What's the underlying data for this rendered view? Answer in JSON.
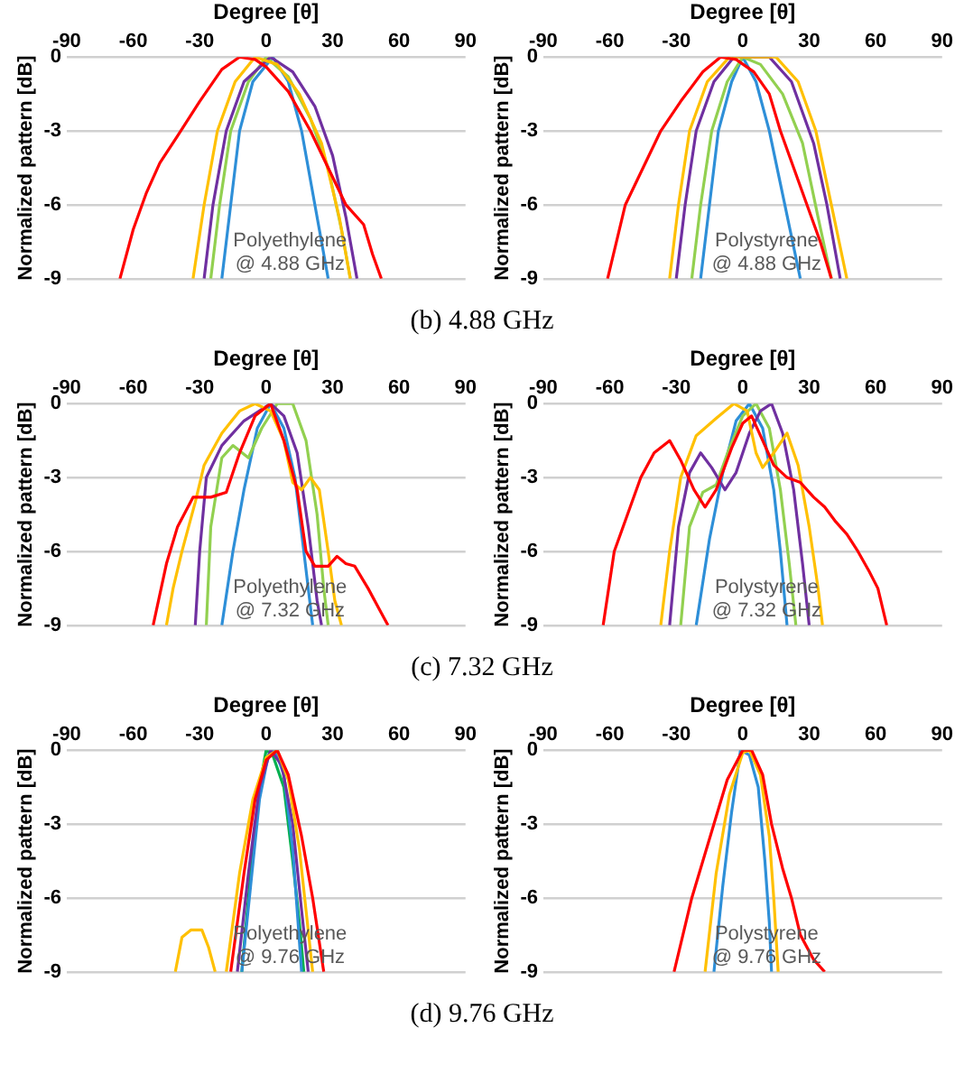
{
  "chart_data": [
    {
      "type": "line",
      "xlabel": "Degree [θ]",
      "ylabel": "Normalized pattern [dB]",
      "xlim": [
        -90,
        90
      ],
      "xticks": [
        -90,
        -60,
        -30,
        0,
        30,
        60,
        90
      ],
      "ylim": [
        -9,
        0
      ],
      "yticks": [
        -9,
        -6,
        -3,
        0
      ],
      "grid": "y",
      "annotations": [
        "Polyethylene\n@ 4.88 GHz",
        "(b) 4.88 GHz"
      ],
      "series": [
        {
          "color": "#ff0000",
          "x": [
            -66,
            -60,
            -54,
            -48,
            -40,
            -30,
            -20,
            -12,
            -5,
            0,
            10,
            20,
            28,
            36,
            44,
            48,
            52
          ],
          "values": [
            -9,
            -7,
            -5.5,
            -4.3,
            -3.2,
            -1.8,
            -0.5,
            0,
            -0.1,
            -0.4,
            -1.4,
            -3,
            -4.5,
            -6,
            -6.8,
            -8,
            -9
          ]
        },
        {
          "color": "#ffc000",
          "x": [
            -33,
            -28,
            -22,
            -14,
            -5,
            5,
            15,
            25,
            33,
            38
          ],
          "values": [
            -9,
            -6,
            -3,
            -1,
            0,
            -0.3,
            -1.5,
            -3.5,
            -6.5,
            -9
          ]
        },
        {
          "color": "#7030a0",
          "x": [
            -28,
            -24,
            -18,
            -10,
            2,
            12,
            22,
            30,
            36,
            41
          ],
          "values": [
            -9,
            -6,
            -3,
            -1,
            0,
            -0.6,
            -2,
            -4,
            -6.5,
            -9
          ]
        },
        {
          "color": "#92d050",
          "x": [
            -25,
            -21,
            -16,
            -8,
            0,
            10,
            20,
            28,
            34,
            38
          ],
          "values": [
            -9,
            -6,
            -3,
            -1,
            0,
            -0.8,
            -2.5,
            -4.5,
            -7,
            -9
          ]
        },
        {
          "color": "#2e8fd8",
          "x": [
            -20,
            -16,
            -12,
            -6,
            3,
            10,
            16,
            22,
            28
          ],
          "values": [
            -9,
            -6,
            -3,
            -1,
            0,
            -1,
            -3,
            -6,
            -9
          ]
        }
      ]
    },
    {
      "type": "line",
      "xlabel": "Degree [θ]",
      "ylabel": "Normalized pattern [dB]",
      "xlim": [
        -90,
        90
      ],
      "xticks": [
        -90,
        -60,
        -30,
        0,
        30,
        60,
        90
      ],
      "ylim": [
        -9,
        0
      ],
      "yticks": [
        -9,
        -6,
        -3,
        0
      ],
      "grid": "y",
      "annotations": [
        "Polystyrene\n@ 4.88 GHz"
      ],
      "series": [
        {
          "color": "#ff0000",
          "x": [
            -61,
            -53,
            -45,
            -37,
            -28,
            -18,
            -10,
            -3,
            5,
            12,
            17,
            23,
            29,
            35,
            40
          ],
          "values": [
            -9,
            -6,
            -4.5,
            -3,
            -1.8,
            -0.6,
            0,
            -0.1,
            -0.6,
            -1.5,
            -3,
            -4.5,
            -6,
            -7.5,
            -9
          ]
        },
        {
          "color": "#ffc000",
          "x": [
            -33,
            -29,
            -24,
            -16,
            -6,
            5,
            15,
            25,
            33,
            40,
            47
          ],
          "values": [
            -9,
            -6,
            -3,
            -1,
            0,
            0,
            0,
            -1,
            -3,
            -6,
            -9
          ]
        },
        {
          "color": "#7030a0",
          "x": [
            -30,
            -26,
            -21,
            -13,
            -4,
            4,
            12,
            22,
            32,
            38,
            44
          ],
          "values": [
            -9,
            -6,
            -3,
            -1,
            0,
            0,
            0,
            -1,
            -3.5,
            -6,
            -9
          ]
        },
        {
          "color": "#92d050",
          "x": [
            -23,
            -19,
            -14,
            -7,
            0,
            8,
            18,
            27,
            34,
            40
          ],
          "values": [
            -9,
            -6,
            -3,
            -1,
            0,
            -0.3,
            -1.5,
            -3.5,
            -6.5,
            -9
          ]
        },
        {
          "color": "#2e8fd8",
          "x": [
            -19,
            -15,
            -11,
            -5,
            0,
            6,
            12,
            19,
            26
          ],
          "values": [
            -9,
            -6,
            -3,
            -1,
            0,
            -1,
            -3,
            -6,
            -9
          ]
        }
      ]
    },
    {
      "type": "line",
      "xlabel": "Degree [θ]",
      "ylabel": "Normalized pattern [dB]",
      "xlim": [
        -90,
        90
      ],
      "xticks": [
        -90,
        -60,
        -30,
        0,
        30,
        60,
        90
      ],
      "ylim": [
        -9,
        0
      ],
      "yticks": [
        -9,
        -6,
        -3,
        0
      ],
      "grid": "y",
      "annotations": [
        "Polyethylene\n@ 7.32 GHz",
        "(c) 7.32 GHz"
      ],
      "series": [
        {
          "color": "#ff0000",
          "x": [
            -51,
            -45,
            -40,
            -33,
            -25,
            -18,
            -12,
            -5,
            2,
            8,
            14,
            18,
            22,
            28,
            32,
            36,
            40,
            46,
            52,
            55
          ],
          "values": [
            -9,
            -6.5,
            -5,
            -3.8,
            -3.8,
            -3.6,
            -2,
            -0.5,
            0,
            -1.5,
            -3.5,
            -6,
            -6.6,
            -6.6,
            -6.2,
            -6.5,
            -6.6,
            -7.5,
            -8.5,
            -9
          ]
        },
        {
          "color": "#ffc000",
          "x": [
            -45,
            -42,
            -38,
            -32,
            -28,
            -20,
            -12,
            -5,
            2,
            8,
            12,
            16,
            20,
            24,
            28,
            31,
            34
          ],
          "values": [
            -9,
            -7.5,
            -6,
            -4,
            -2.5,
            -1.2,
            -0.3,
            0,
            -0.3,
            -1.5,
            -3.2,
            -3.5,
            -3,
            -3.5,
            -6,
            -8,
            -9
          ]
        },
        {
          "color": "#7030a0",
          "x": [
            -32,
            -30,
            -27,
            -20,
            -10,
            2,
            8,
            14,
            19,
            23,
            25
          ],
          "values": [
            -9,
            -6,
            -3,
            -1.7,
            -0.7,
            0,
            -0.5,
            -2,
            -5,
            -8,
            -9
          ]
        },
        {
          "color": "#92d050",
          "x": [
            -27,
            -25,
            -20,
            -15,
            -8,
            -2,
            5,
            12,
            18,
            23,
            26,
            28
          ],
          "values": [
            -9,
            -5,
            -2.2,
            -1.7,
            -2.2,
            -1,
            0,
            0,
            -1.5,
            -4.5,
            -7.5,
            -9
          ]
        },
        {
          "color": "#2e8fd8",
          "x": [
            -20,
            -15,
            -10,
            -4,
            2,
            8,
            13,
            17,
            21
          ],
          "values": [
            -9,
            -6,
            -3.5,
            -1,
            0,
            -1,
            -3,
            -6,
            -9
          ]
        }
      ]
    },
    {
      "type": "line",
      "xlabel": "Degree [θ]",
      "ylabel": "Normalized pattern [dB]",
      "xlim": [
        -90,
        90
      ],
      "xticks": [
        -90,
        -60,
        -30,
        0,
        30,
        60,
        90
      ],
      "ylim": [
        -9,
        0
      ],
      "yticks": [
        -9,
        -6,
        -3,
        0
      ],
      "grid": "y",
      "annotations": [
        "Polystyrene\n@ 7.32 GHz"
      ],
      "series": [
        {
          "color": "#ff0000",
          "x": [
            -63,
            -58,
            -52,
            -46,
            -40,
            -33,
            -28,
            -22,
            -17,
            -12,
            -5,
            0,
            4,
            9,
            14,
            20,
            26,
            32,
            37,
            42,
            47,
            52,
            57,
            61,
            65
          ],
          "values": [
            -9,
            -6,
            -4.5,
            -3,
            -2,
            -1.5,
            -2.3,
            -3.5,
            -4.2,
            -3.5,
            -1.8,
            -0.8,
            -0.5,
            -1.5,
            -2.5,
            -3,
            -3.2,
            -3.8,
            -4.2,
            -4.8,
            -5.3,
            -6,
            -6.8,
            -7.5,
            -9
          ]
        },
        {
          "color": "#ffc000",
          "x": [
            -37,
            -33,
            -28,
            -21,
            -12,
            -4,
            2,
            6,
            9,
            14,
            20,
            25,
            30,
            34,
            36
          ],
          "values": [
            -9,
            -6,
            -3,
            -1.3,
            -0.6,
            0,
            -0.3,
            -2,
            -2.6,
            -2,
            -1.2,
            -2.5,
            -5,
            -7.5,
            -9
          ]
        },
        {
          "color": "#7030a0",
          "x": [
            -33,
            -29,
            -24,
            -19,
            -14,
            -8,
            -3,
            3,
            8,
            13,
            18,
            23,
            27,
            30
          ],
          "values": [
            -9,
            -5,
            -2.8,
            -2,
            -2.6,
            -3.5,
            -2.8,
            -1.2,
            -0.3,
            0,
            -1.2,
            -3.5,
            -6.5,
            -9
          ]
        },
        {
          "color": "#92d050",
          "x": [
            -28,
            -24,
            -18,
            -12,
            -6,
            0,
            6,
            12,
            17,
            21,
            24
          ],
          "values": [
            -9,
            -5,
            -3.6,
            -3.3,
            -1.8,
            -0.5,
            0,
            -1,
            -3.5,
            -6.5,
            -9
          ]
        },
        {
          "color": "#2e8fd8",
          "x": [
            -21,
            -15,
            -9,
            -3,
            3,
            9,
            14,
            17,
            20
          ],
          "values": [
            -9,
            -5.5,
            -2.8,
            -0.7,
            0,
            -1,
            -3.5,
            -6,
            -9
          ]
        }
      ]
    },
    {
      "type": "line",
      "xlabel": "Degree [θ]",
      "ylabel": "Normalized pattern [dB]",
      "xlim": [
        -90,
        90
      ],
      "xticks": [
        -90,
        -60,
        -30,
        0,
        30,
        60,
        90
      ],
      "ylim": [
        -9,
        0
      ],
      "yticks": [
        -9,
        -6,
        -3,
        0
      ],
      "grid": "y",
      "annotations": [
        "Polyethylene\n@ 9.76 GHz",
        "(d) 9.76 GHz"
      ],
      "series": [
        {
          "color": "#ff0000",
          "x": [
            -16,
            -10,
            -5,
            0,
            5,
            10,
            16,
            21,
            26
          ],
          "values": [
            -9,
            -5,
            -2,
            -0.4,
            0,
            -1,
            -3.5,
            -6,
            -9
          ]
        },
        {
          "color": "#ffc000",
          "x": [
            -41,
            -38,
            -34,
            -29,
            -26,
            -23,
            -20,
            -18,
            -12,
            -6,
            0,
            5,
            10,
            15,
            18,
            21
          ],
          "values": [
            -9,
            -7.6,
            -7.3,
            -7.3,
            -8,
            -9,
            null,
            -9,
            -5,
            -2,
            -0.3,
            0,
            -1.2,
            -4,
            -6.5,
            -9
          ]
        },
        {
          "color": "#7030a0",
          "x": [
            -13,
            -8,
            -3,
            2,
            7,
            12,
            16,
            19
          ],
          "values": [
            -9,
            -5,
            -1.5,
            0,
            -0.6,
            -3,
            -6.5,
            -9
          ]
        },
        {
          "color": "#2e8fd8",
          "x": [
            -11,
            -7,
            -3,
            1,
            4,
            8,
            12,
            14,
            16
          ],
          "values": [
            -9,
            -5.5,
            -2,
            -0.2,
            0,
            -1,
            -4,
            -6.5,
            -9
          ]
        },
        {
          "color": "#00b050",
          "x": [
            -11,
            -7,
            -3,
            0,
            3,
            8,
            12,
            15,
            17
          ],
          "values": [
            -9,
            -5,
            -1.5,
            0,
            -0.2,
            -1.5,
            -4.5,
            -7,
            -9
          ]
        }
      ]
    },
    {
      "type": "line",
      "xlabel": "Degree [θ]",
      "ylabel": "Normalized pattern [dB]",
      "xlim": [
        -90,
        90
      ],
      "xticks": [
        -90,
        -60,
        -30,
        0,
        30,
        60,
        90
      ],
      "ylim": [
        -9,
        0
      ],
      "yticks": [
        -9,
        -6,
        -3,
        0
      ],
      "grid": "y",
      "annotations": [
        "Polystyrene\n@ 9.76 GHz"
      ],
      "series": [
        {
          "color": "#ff0000",
          "x": [
            -31,
            -27,
            -23,
            -18,
            -13,
            -7,
            0,
            4,
            9,
            13,
            18,
            22,
            26,
            32,
            37
          ],
          "values": [
            -9,
            -7.5,
            -6,
            -4.5,
            -3,
            -1.2,
            0,
            0,
            -1,
            -3,
            -4.8,
            -6,
            -7.5,
            -8.5,
            -9
          ]
        },
        {
          "color": "#ffc000",
          "x": [
            -17,
            -12,
            -6,
            0,
            3,
            8,
            12,
            14,
            16
          ],
          "values": [
            -9,
            -5,
            -1.8,
            -0.1,
            0,
            -1,
            -3.5,
            -6,
            -9
          ]
        },
        {
          "color": "#2e8fd8",
          "x": [
            -13,
            -9,
            -5,
            -1,
            3,
            7,
            10,
            12,
            13
          ],
          "values": [
            -9,
            -5.5,
            -2.5,
            0,
            -0.2,
            -1.5,
            -4.5,
            -7,
            -9
          ]
        }
      ]
    }
  ]
}
